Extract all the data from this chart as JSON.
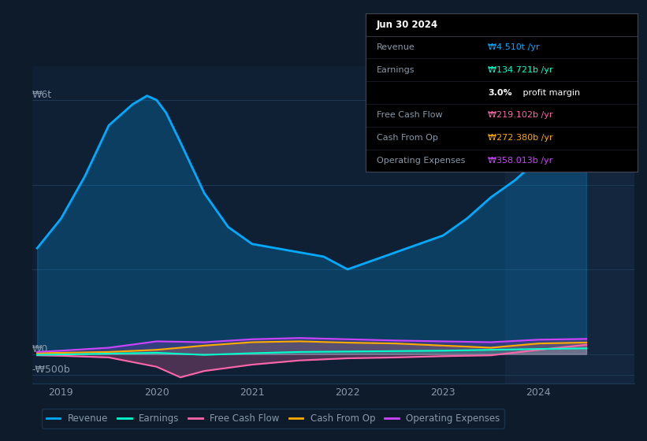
{
  "bg_color": "#0d1b2a",
  "plot_bg_color": "#0f2035",
  "overlay_color": "#162840",
  "grid_color": "#1e3a55",
  "text_color": "#8899aa",
  "revenue_color": "#00aaff",
  "earnings_color": "#00ffcc",
  "fcf_color": "#ff66aa",
  "cashfromop_color": "#ffaa00",
  "opex_color": "#cc44ff",
  "ylabel_top": "₩6t",
  "ylabel_zero": "₩0",
  "ylabel_neg": "-₩500b",
  "x_ticks": [
    2019,
    2020,
    2021,
    2022,
    2023,
    2024
  ],
  "x_min": 2018.7,
  "x_max": 2025.0,
  "y_min": -700,
  "y_max": 6800,
  "revenue_x": [
    2018.75,
    2019.0,
    2019.25,
    2019.5,
    2019.75,
    2019.9,
    2020.0,
    2020.1,
    2020.25,
    2020.5,
    2020.75,
    2021.0,
    2021.25,
    2021.5,
    2021.75,
    2022.0,
    2022.25,
    2022.5,
    2022.75,
    2023.0,
    2023.25,
    2023.5,
    2023.75,
    2024.0,
    2024.25,
    2024.5
  ],
  "revenue_y": [
    2500,
    3200,
    4200,
    5400,
    5900,
    6100,
    6000,
    5700,
    5000,
    3800,
    3000,
    2600,
    2500,
    2400,
    2300,
    2000,
    2200,
    2400,
    2600,
    2800,
    3200,
    3700,
    4100,
    4600,
    4900,
    4510
  ],
  "earnings_x": [
    2018.75,
    2019.0,
    2019.5,
    2020.0,
    2020.5,
    2021.0,
    2021.5,
    2022.0,
    2022.5,
    2023.0,
    2023.5,
    2024.0,
    2024.5
  ],
  "earnings_y": [
    -20,
    -10,
    10,
    30,
    -20,
    20,
    50,
    60,
    70,
    80,
    100,
    120,
    134.721
  ],
  "fcf_x": [
    2018.75,
    2019.0,
    2019.5,
    2020.0,
    2020.25,
    2020.5,
    2021.0,
    2021.5,
    2022.0,
    2022.5,
    2023.0,
    2023.5,
    2024.0,
    2024.5
  ],
  "fcf_y": [
    -30,
    -40,
    -80,
    -300,
    -550,
    -400,
    -250,
    -150,
    -100,
    -80,
    -50,
    -30,
    100,
    219.102
  ],
  "cashfromop_x": [
    2018.75,
    2019.0,
    2019.5,
    2020.0,
    2020.5,
    2021.0,
    2021.5,
    2022.0,
    2022.5,
    2023.0,
    2023.5,
    2024.0,
    2024.5
  ],
  "cashfromop_y": [
    20,
    30,
    50,
    100,
    200,
    280,
    300,
    270,
    250,
    200,
    150,
    250,
    272.38
  ],
  "opex_x": [
    2018.75,
    2019.0,
    2019.5,
    2020.0,
    2020.5,
    2021.0,
    2021.5,
    2022.0,
    2022.5,
    2023.0,
    2023.5,
    2024.0,
    2024.5
  ],
  "opex_y": [
    50,
    80,
    150,
    300,
    280,
    350,
    380,
    350,
    320,
    300,
    280,
    340,
    358.013
  ],
  "tooltip": {
    "title": "Jun 30 2024",
    "rows": [
      {
        "label": "Revenue",
        "value": "₩4.510t /yr",
        "color": "#00aaff"
      },
      {
        "label": "Earnings",
        "value": "₩134.721b /yr",
        "color": "#00ffcc"
      },
      {
        "label": "",
        "value": "3.0% profit margin",
        "color": "#ffffff",
        "bold_prefix": "3.0%"
      },
      {
        "label": "Free Cash Flow",
        "value": "₩219.102b /yr",
        "color": "#ff66aa"
      },
      {
        "label": "Cash From Op",
        "value": "₩272.380b /yr",
        "color": "#ffaa00"
      },
      {
        "label": "Operating Expenses",
        "value": "₩358.013b /yr",
        "color": "#cc44ff"
      }
    ]
  },
  "legend": [
    {
      "label": "Revenue",
      "color": "#00aaff"
    },
    {
      "label": "Earnings",
      "color": "#00ffcc"
    },
    {
      "label": "Free Cash Flow",
      "color": "#ff66aa"
    },
    {
      "label": "Cash From Op",
      "color": "#ffaa00"
    },
    {
      "label": "Operating Expenses",
      "color": "#cc44ff"
    }
  ]
}
